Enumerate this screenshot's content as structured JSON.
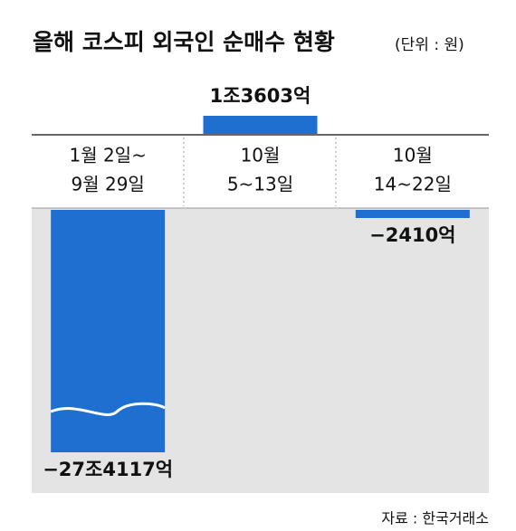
{
  "chart_data": {
    "type": "bar",
    "title": "올해 코스피 외국인 순매수 현황",
    "subtitle": "(단위 : 원)",
    "source": "자료 : 한국거래소",
    "categories": [
      [
        "1월 2일~",
        "9월 29일"
      ],
      [
        "10월",
        "5~13일"
      ],
      [
        "10월",
        "14~22일"
      ]
    ],
    "values": [
      -274117,
      13603,
      -2410
    ],
    "value_labels": [
      "−27조4117억",
      "1조3603억",
      "−2410억"
    ],
    "color": "#1f6fd1"
  }
}
